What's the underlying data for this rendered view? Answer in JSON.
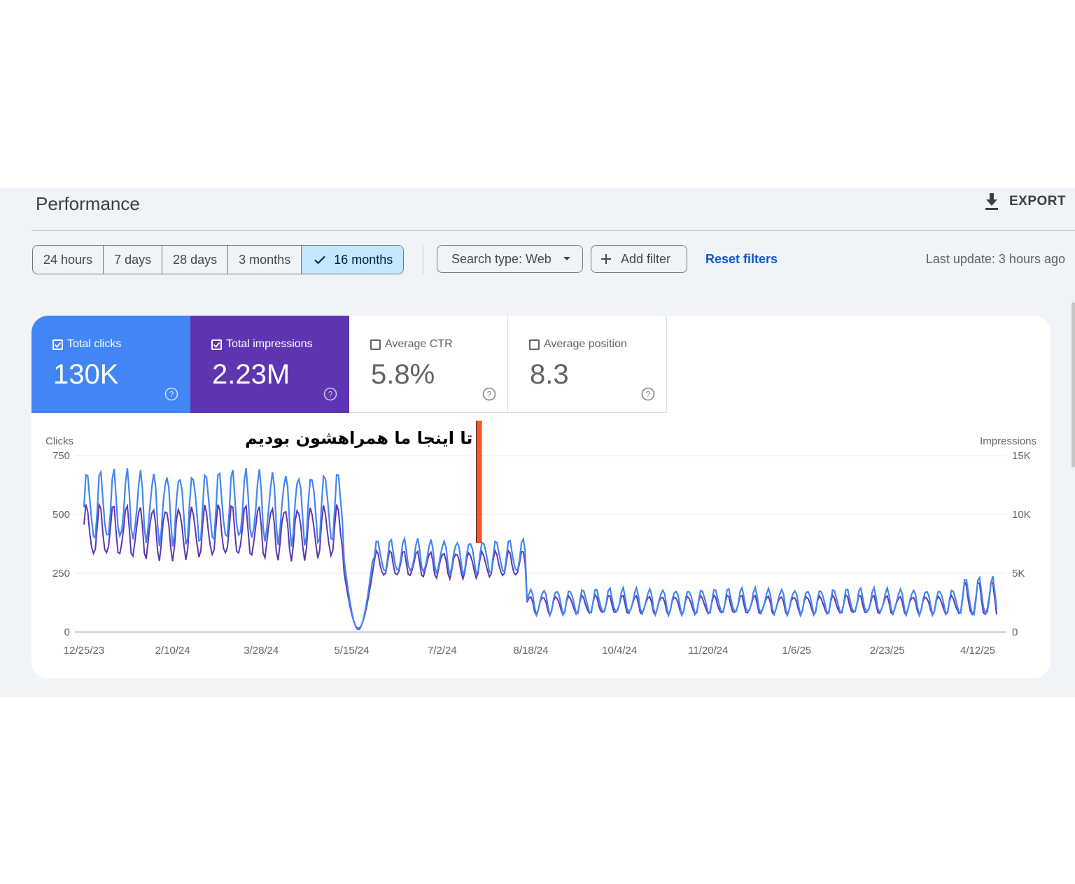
{
  "header": {
    "title": "Performance",
    "export_label": "EXPORT"
  },
  "date_range": {
    "options": [
      "24 hours",
      "7 days",
      "28 days",
      "3 months",
      "16 months"
    ],
    "selected": "16 months"
  },
  "filters": {
    "search_type": "Search type: Web",
    "add_filter": "Add filter",
    "reset": "Reset filters",
    "last_update": "Last update: 3 hours ago"
  },
  "metrics": [
    {
      "label": "Total clicks",
      "value": "130K",
      "checked": true,
      "color": "#4285f4"
    },
    {
      "label": "Total impressions",
      "value": "2.23M",
      "checked": true,
      "color": "#5e35b1"
    },
    {
      "label": "Average CTR",
      "value": "5.8%",
      "checked": false,
      "color": "#ffffff"
    },
    {
      "label": "Average position",
      "value": "8.3",
      "checked": false,
      "color": "#ffffff"
    }
  ],
  "annotation": {
    "text": "تا اینجا ما همراهشون بودیم",
    "marker_date": "7/27/24",
    "marker_color": "#ff5722"
  },
  "chart_data": {
    "type": "line",
    "ylabel_left": "Clicks",
    "ylabel_right": "Impressions",
    "y_left_ticks": [
      "0",
      "250",
      "500",
      "750"
    ],
    "y_right_ticks": [
      "0",
      "5K",
      "10K",
      "15K"
    ],
    "ylim_left": [
      0,
      750
    ],
    "ylim_right": [
      0,
      15000
    ],
    "x_ticks": [
      "12/25/23",
      "2/10/24",
      "3/28/24",
      "5/15/24",
      "7/2/24",
      "8/18/24",
      "10/4/24",
      "11/20/24",
      "1/6/25",
      "2/23/25",
      "4/12/25"
    ],
    "x_range": [
      "12/25/23",
      "4/22/25"
    ],
    "series": [
      {
        "name": "Clicks",
        "axis": "left",
        "color": "#4285f4",
        "segments": [
          {
            "from": "12/25/23",
            "to": "5/10/24",
            "low": 360,
            "high": 700
          },
          {
            "from": "5/11/24",
            "to": "5/26/24",
            "low": 10,
            "high": 300
          },
          {
            "from": "5/27/24",
            "to": "8/15/24",
            "low": 240,
            "high": 400
          },
          {
            "from": "8/16/24",
            "to": "4/3/25",
            "low": 70,
            "high": 190
          },
          {
            "from": "4/4/25",
            "to": "4/22/25",
            "low": 50,
            "high": 240
          }
        ]
      },
      {
        "name": "Impressions",
        "axis": "right",
        "color": "#5e35b1",
        "segments": [
          {
            "from": "12/25/23",
            "to": "5/10/24",
            "low": 6000,
            "high": 11000
          },
          {
            "from": "5/11/24",
            "to": "5/26/24",
            "low": 300,
            "high": 5000
          },
          {
            "from": "5/27/24",
            "to": "8/15/24",
            "low": 4500,
            "high": 7000
          },
          {
            "from": "8/16/24",
            "to": "4/3/25",
            "low": 1400,
            "high": 3200
          },
          {
            "from": "4/4/25",
            "to": "4/22/25",
            "low": 1000,
            "high": 4400
          }
        ]
      }
    ]
  }
}
